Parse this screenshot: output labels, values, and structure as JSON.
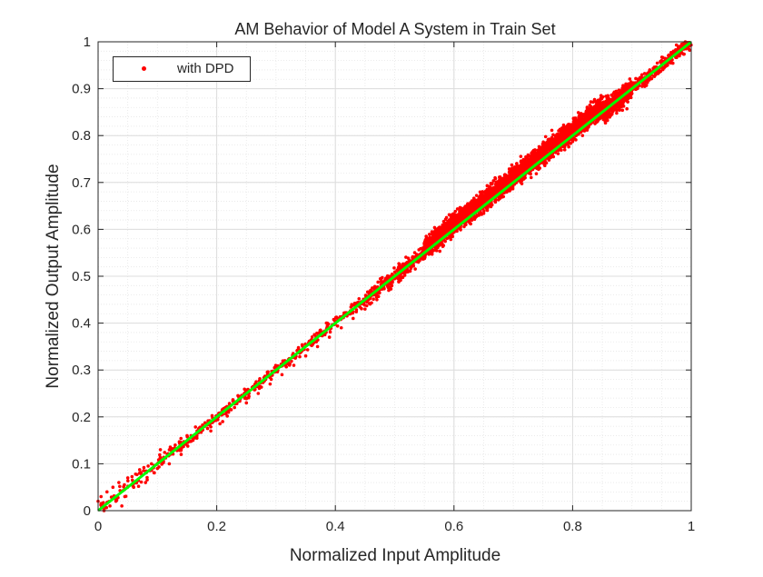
{
  "chart_data": {
    "type": "scatter",
    "title": "AM Behavior of Model A System in Train Set",
    "xlabel": "Normalized Input Amplitude",
    "ylabel": "Normalized Output Amplitude",
    "xlim": [
      0,
      1
    ],
    "ylim": [
      0,
      1
    ],
    "xticks": [
      "0",
      "0.2",
      "0.4",
      "0.6",
      "0.8",
      "1"
    ],
    "yticks": [
      "0",
      "0.1",
      "0.2",
      "0.3",
      "0.4",
      "0.5",
      "0.6",
      "0.7",
      "0.8",
      "0.9",
      "1"
    ],
    "grid": true,
    "minor_grid": true,
    "legend_position": "top-left",
    "series": [
      {
        "name": "with DPD",
        "kind": "scatter",
        "color": "#ff0000",
        "note_density": "sparse below x=0.45, dense cloud between x=0.5 and x=0.9",
        "points": [
          [
            0.0,
            0.02
          ],
          [
            0.005,
            0.03
          ],
          [
            0.01,
            0.0
          ],
          [
            0.015,
            0.04
          ],
          [
            0.02,
            0.01
          ],
          [
            0.025,
            0.05
          ],
          [
            0.03,
            0.02
          ],
          [
            0.035,
            0.06
          ],
          [
            0.04,
            0.01
          ],
          [
            0.045,
            0.03
          ],
          [
            0.05,
            0.07
          ],
          [
            0.06,
            0.05
          ],
          [
            0.07,
            0.08
          ],
          [
            0.08,
            0.06
          ],
          [
            0.09,
            0.1
          ],
          [
            0.1,
            0.09
          ],
          [
            0.105,
            0.13
          ],
          [
            0.11,
            0.11
          ],
          [
            0.12,
            0.1
          ],
          [
            0.13,
            0.14
          ],
          [
            0.14,
            0.12
          ],
          [
            0.15,
            0.16
          ],
          [
            0.16,
            0.15
          ],
          [
            0.17,
            0.17
          ],
          [
            0.18,
            0.18
          ],
          [
            0.19,
            0.17
          ],
          [
            0.2,
            0.2
          ],
          [
            0.21,
            0.19
          ],
          [
            0.22,
            0.21
          ],
          [
            0.23,
            0.22
          ],
          [
            0.24,
            0.24
          ],
          [
            0.25,
            0.23
          ],
          [
            0.26,
            0.26
          ],
          [
            0.27,
            0.25
          ],
          [
            0.28,
            0.28
          ],
          [
            0.29,
            0.27
          ],
          [
            0.3,
            0.3
          ],
          [
            0.31,
            0.29
          ],
          [
            0.32,
            0.32
          ],
          [
            0.33,
            0.31
          ],
          [
            0.34,
            0.34
          ],
          [
            0.35,
            0.33
          ],
          [
            0.36,
            0.36
          ],
          [
            0.37,
            0.35
          ],
          [
            0.38,
            0.38
          ],
          [
            0.39,
            0.37
          ],
          [
            0.4,
            0.4
          ],
          [
            0.41,
            0.39
          ],
          [
            0.42,
            0.42
          ],
          [
            0.43,
            0.41
          ],
          [
            0.44,
            0.44
          ],
          [
            0.45,
            0.43
          ],
          [
            0.46,
            0.46
          ],
          [
            0.47,
            0.45
          ],
          [
            0.48,
            0.48
          ],
          [
            0.49,
            0.47
          ],
          [
            0.5,
            0.5
          ],
          [
            0.51,
            0.52
          ],
          [
            0.52,
            0.51
          ],
          [
            0.53,
            0.54
          ],
          [
            0.54,
            0.53
          ],
          [
            0.55,
            0.57
          ],
          [
            0.56,
            0.55
          ],
          [
            0.57,
            0.59
          ],
          [
            0.58,
            0.57
          ],
          [
            0.59,
            0.61
          ],
          [
            0.6,
            0.6
          ],
          [
            0.61,
            0.63
          ],
          [
            0.62,
            0.61
          ],
          [
            0.63,
            0.65
          ],
          [
            0.64,
            0.63
          ],
          [
            0.65,
            0.67
          ],
          [
            0.66,
            0.65
          ],
          [
            0.67,
            0.69
          ],
          [
            0.68,
            0.67
          ],
          [
            0.69,
            0.71
          ],
          [
            0.7,
            0.7
          ],
          [
            0.71,
            0.72
          ],
          [
            0.72,
            0.71
          ],
          [
            0.73,
            0.74
          ],
          [
            0.74,
            0.73
          ],
          [
            0.75,
            0.76
          ],
          [
            0.76,
            0.75
          ],
          [
            0.77,
            0.78
          ],
          [
            0.78,
            0.77
          ],
          [
            0.79,
            0.8
          ],
          [
            0.8,
            0.79
          ],
          [
            0.81,
            0.82
          ],
          [
            0.82,
            0.81
          ],
          [
            0.83,
            0.84
          ],
          [
            0.84,
            0.83
          ],
          [
            0.85,
            0.86
          ],
          [
            0.86,
            0.85
          ],
          [
            0.87,
            0.88
          ],
          [
            0.88,
            0.87
          ],
          [
            0.89,
            0.9
          ],
          [
            0.9,
            0.89
          ],
          [
            0.91,
            0.92
          ],
          [
            0.92,
            0.91
          ],
          [
            0.93,
            0.94
          ],
          [
            0.94,
            0.93
          ],
          [
            0.95,
            0.96
          ],
          [
            0.96,
            0.95
          ],
          [
            0.97,
            0.98
          ],
          [
            0.98,
            0.97
          ],
          [
            0.99,
            1.0
          ],
          [
            0.995,
            0.99
          ]
        ]
      },
      {
        "name": "",
        "kind": "line",
        "color": "#00ff00",
        "points": [
          [
            0,
            0
          ],
          [
            1,
            1
          ]
        ]
      }
    ]
  }
}
